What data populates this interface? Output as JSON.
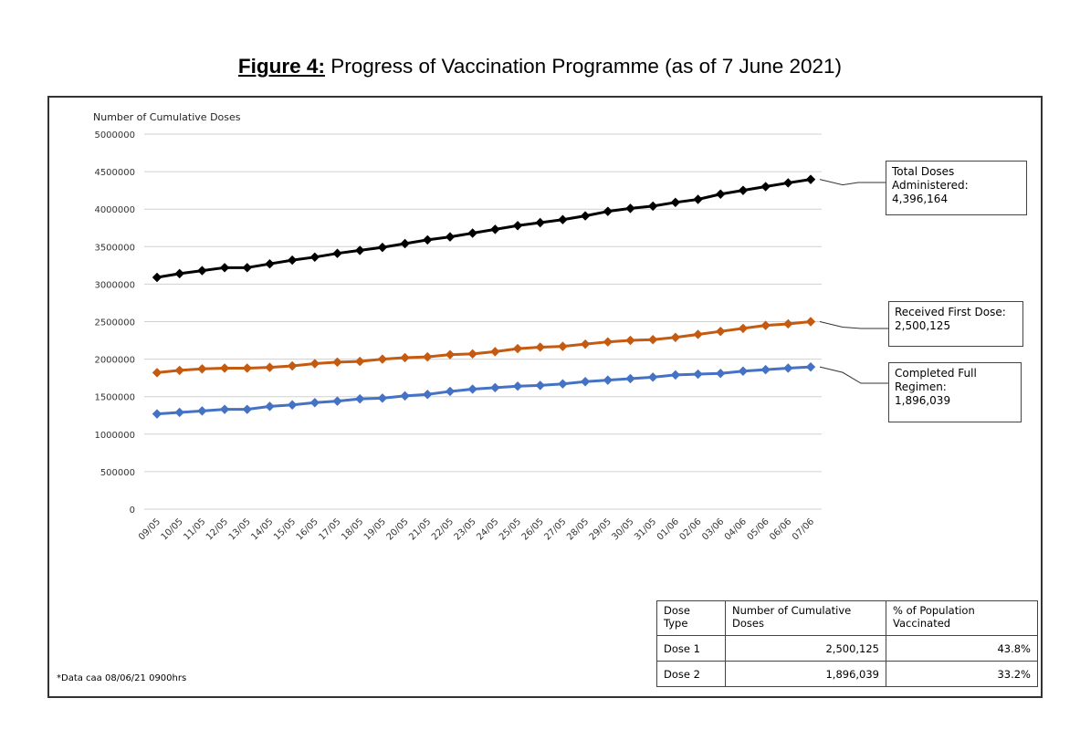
{
  "caption": {
    "label": "Figure 4:",
    "text": " Progress of Vaccination Programme (as of 7 June 2021)"
  },
  "chart_data": {
    "type": "line",
    "ylabel": "Number of Cumulative Doses",
    "ylim": [
      0,
      5000000
    ],
    "yticks": [
      0,
      500000,
      1000000,
      1500000,
      2000000,
      2500000,
      3000000,
      3500000,
      4000000,
      4500000,
      5000000
    ],
    "grid": true,
    "x": [
      "09/05",
      "10/05",
      "11/05",
      "12/05",
      "13/05",
      "14/05",
      "15/05",
      "16/05",
      "17/05",
      "18/05",
      "19/05",
      "20/05",
      "21/05",
      "22/05",
      "23/05",
      "24/05",
      "25/05",
      "26/05",
      "27/05",
      "28/05",
      "29/05",
      "30/05",
      "31/05",
      "01/06",
      "02/06",
      "03/06",
      "04/06",
      "05/06",
      "06/06",
      "07/06"
    ],
    "series": [
      {
        "id": "total",
        "color": "#000000",
        "values": [
          3090000,
          3140000,
          3180000,
          3220000,
          3220000,
          3270000,
          3320000,
          3360000,
          3410000,
          3450000,
          3490000,
          3540000,
          3590000,
          3630000,
          3680000,
          3730000,
          3780000,
          3820000,
          3860000,
          3910000,
          3970000,
          4010000,
          4040000,
          4090000,
          4130000,
          4200000,
          4250000,
          4300000,
          4350000,
          4396164
        ]
      },
      {
        "id": "first",
        "color": "#C55A11",
        "values": [
          1820000,
          1850000,
          1870000,
          1880000,
          1880000,
          1890000,
          1910000,
          1940000,
          1960000,
          1970000,
          2000000,
          2020000,
          2030000,
          2060000,
          2070000,
          2100000,
          2140000,
          2160000,
          2170000,
          2200000,
          2230000,
          2250000,
          2260000,
          2290000,
          2330000,
          2370000,
          2410000,
          2450000,
          2470000,
          2500125
        ]
      },
      {
        "id": "full",
        "color": "#4472C4",
        "values": [
          1270000,
          1290000,
          1310000,
          1330000,
          1330000,
          1370000,
          1390000,
          1420000,
          1440000,
          1470000,
          1480000,
          1510000,
          1530000,
          1570000,
          1600000,
          1620000,
          1640000,
          1650000,
          1670000,
          1700000,
          1720000,
          1740000,
          1760000,
          1790000,
          1800000,
          1810000,
          1840000,
          1860000,
          1880000,
          1896039
        ]
      }
    ],
    "annotations": [
      {
        "series": "total",
        "text": "Total Doses\nAdministered:\n4,396,164"
      },
      {
        "series": "first",
        "text": "Received First Dose:\n2,500,125"
      },
      {
        "series": "full",
        "text": "Completed Full\nRegimen:\n1,896,039"
      }
    ]
  },
  "table": {
    "headers": [
      "Dose\nType",
      "Number of Cumulative\nDoses",
      "% of Population\nVaccinated"
    ],
    "rows": [
      [
        "Dose 1",
        "2,500,125",
        "43.8%"
      ],
      [
        "Dose 2",
        "1,896,039",
        "33.2%"
      ]
    ]
  },
  "footnote": "*Data caa 08/06/21 0900hrs"
}
